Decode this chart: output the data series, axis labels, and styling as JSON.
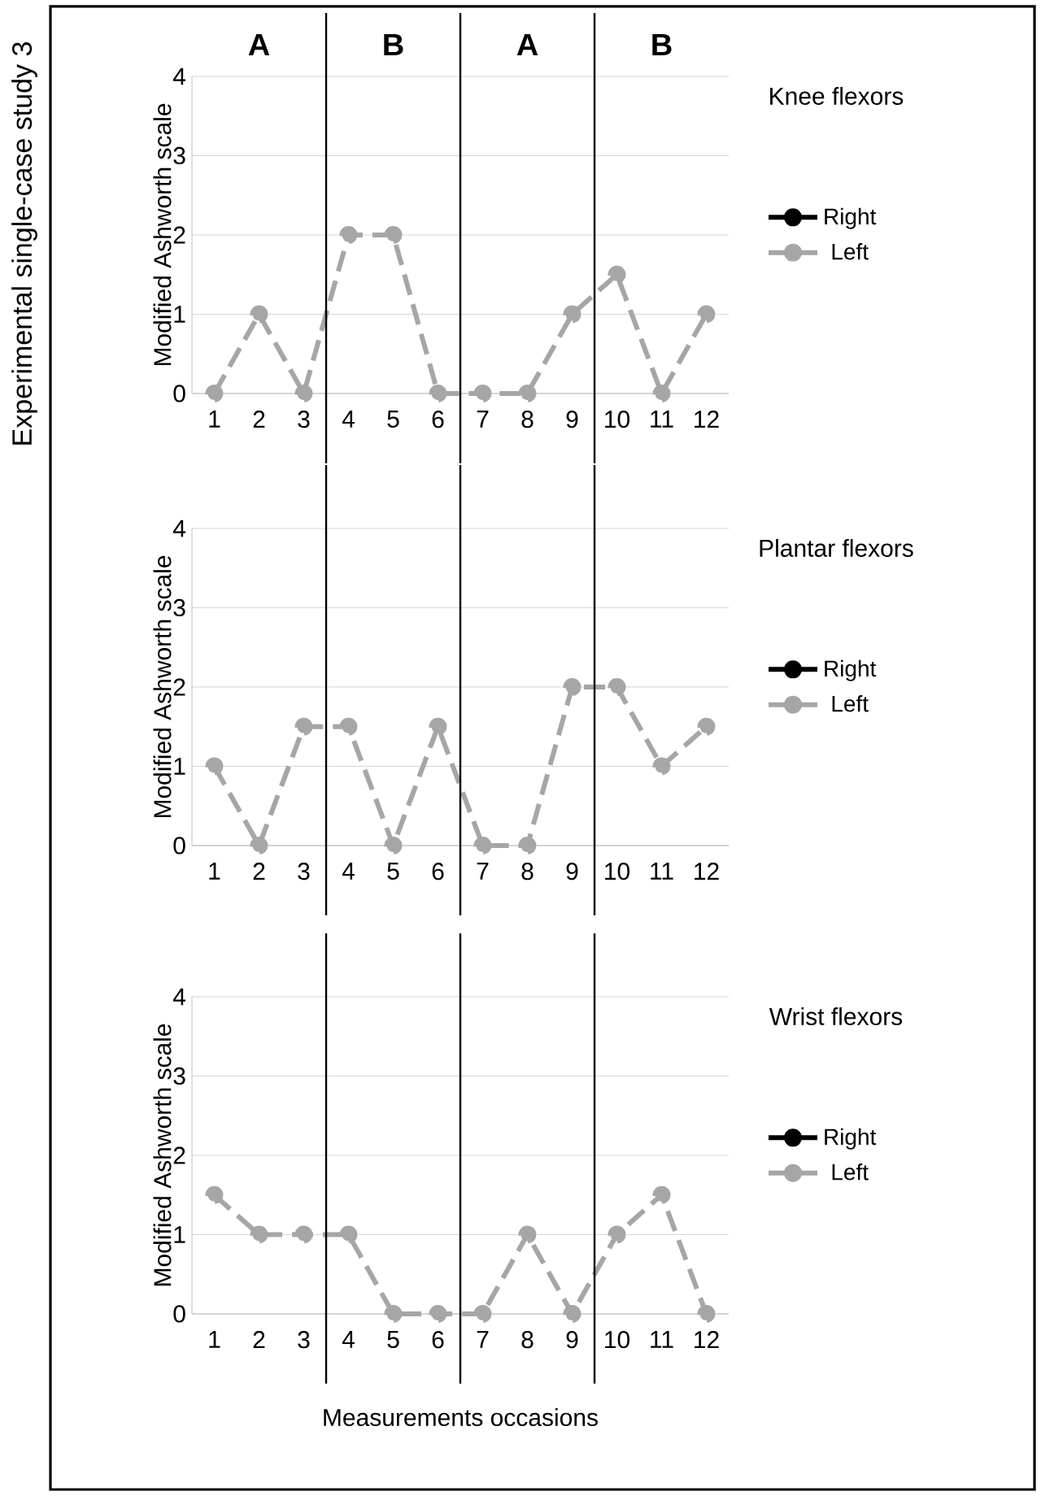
{
  "chart_data": [
    {
      "type": "line",
      "legend_title": "Knee flexors",
      "ylabel": "Modified Ashworth scale",
      "annotations": [
        "Experimental single-case study 3",
        "A",
        "B",
        "A",
        "B"
      ],
      "x": [
        1,
        2,
        3,
        4,
        5,
        6,
        7,
        8,
        9,
        10,
        11,
        12
      ],
      "xlim": [
        0.5,
        12.5
      ],
      "xticks": [
        1,
        2,
        3,
        4,
        5,
        6,
        7,
        8,
        9,
        10,
        11,
        12
      ],
      "ylim": [
        0,
        4
      ],
      "yticks": [
        0,
        1,
        2,
        3,
        4
      ],
      "grid": "y",
      "legend": "right",
      "marker": "circle",
      "series": [
        {
          "name": "Right",
          "color": "#000000",
          "line_style": "solid",
          "values": [
            null,
            null,
            null,
            null,
            null,
            null,
            null,
            null,
            null,
            null,
            null,
            null
          ]
        },
        {
          "name": "Left",
          "color": "#a6a6a6",
          "line_style": "dashed",
          "values": [
            0,
            1,
            0,
            2,
            2,
            0,
            0,
            0,
            1,
            1.5,
            0,
            1
          ]
        }
      ],
      "ref_lines": [
        {
          "axis": "x",
          "value": 3.5
        },
        {
          "axis": "x",
          "value": 6.5
        },
        {
          "axis": "x",
          "value": 9.5
        }
      ]
    },
    {
      "type": "line",
      "legend_title": "Plantar flexors",
      "ylabel": "Modified Ashworth scale",
      "x": [
        1,
        2,
        3,
        4,
        5,
        6,
        7,
        8,
        9,
        10,
        11,
        12
      ],
      "xlim": [
        0.5,
        12.5
      ],
      "xticks": [
        1,
        2,
        3,
        4,
        5,
        6,
        7,
        8,
        9,
        10,
        11,
        12
      ],
      "ylim": [
        0,
        4
      ],
      "yticks": [
        0,
        1,
        2,
        3,
        4
      ],
      "grid": "y",
      "legend": "right",
      "marker": "circle",
      "series": [
        {
          "name": "Right",
          "color": "#000000",
          "line_style": "solid",
          "values": [
            null,
            null,
            null,
            null,
            null,
            null,
            null,
            null,
            null,
            null,
            null,
            null
          ]
        },
        {
          "name": "Left",
          "color": "#a6a6a6",
          "line_style": "dashed",
          "values": [
            1,
            0,
            1.5,
            1.5,
            0,
            1.5,
            0,
            0,
            2,
            2,
            1,
            1.5
          ]
        }
      ],
      "ref_lines": [
        {
          "axis": "x",
          "value": 3.5
        },
        {
          "axis": "x",
          "value": 6.5
        },
        {
          "axis": "x",
          "value": 9.5
        }
      ]
    },
    {
      "type": "line",
      "legend_title": "Wrist flexors",
      "ylabel": "Modified Ashworth scale",
      "xlabel": "Measurements occasions",
      "x": [
        1,
        2,
        3,
        4,
        5,
        6,
        7,
        8,
        9,
        10,
        11,
        12
      ],
      "xlim": [
        0.5,
        12.5
      ],
      "xticks": [
        1,
        2,
        3,
        4,
        5,
        6,
        7,
        8,
        9,
        10,
        11,
        12
      ],
      "ylim": [
        0,
        4
      ],
      "yticks": [
        0,
        1,
        2,
        3,
        4
      ],
      "grid": "y",
      "legend": "right",
      "marker": "circle",
      "series": [
        {
          "name": "Right",
          "color": "#000000",
          "line_style": "solid",
          "values": [
            null,
            null,
            null,
            null,
            null,
            null,
            null,
            null,
            null,
            null,
            null,
            null
          ]
        },
        {
          "name": "Left",
          "color": "#a6a6a6",
          "line_style": "dashed",
          "values": [
            1.5,
            1,
            1,
            1,
            0,
            0,
            0,
            1,
            0,
            1,
            1.5,
            0
          ]
        }
      ],
      "ref_lines": [
        {
          "axis": "x",
          "value": 3.5
        },
        {
          "axis": "x",
          "value": 6.5
        },
        {
          "axis": "x",
          "value": 9.5
        }
      ]
    }
  ]
}
